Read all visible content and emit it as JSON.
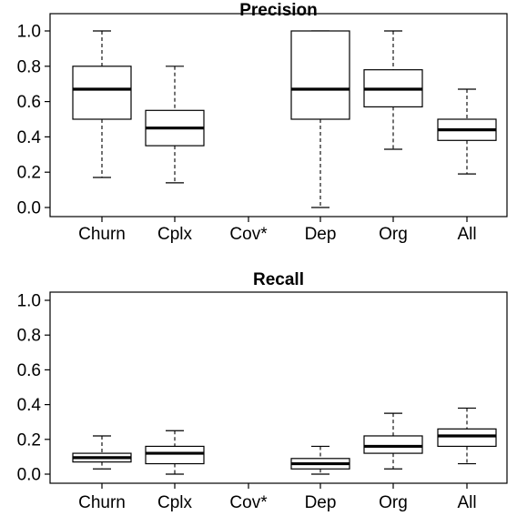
{
  "chart_data": [
    {
      "type": "box",
      "title": "Precision",
      "categories": [
        "Churn",
        "Cplx",
        "Cov*",
        "Dep",
        "Org",
        "All"
      ],
      "ylim": [
        0,
        1
      ],
      "yticks": [
        "0.0",
        "0.2",
        "0.4",
        "0.6",
        "0.8",
        "1.0"
      ],
      "boxes": [
        {
          "category": "Churn",
          "min": 0.17,
          "q1": 0.5,
          "median": 0.67,
          "q3": 0.8,
          "max": 1.0
        },
        {
          "category": "Cplx",
          "min": 0.14,
          "q1": 0.35,
          "median": 0.45,
          "q3": 0.55,
          "max": 0.8
        },
        {
          "category": "Cov*",
          "min": null,
          "q1": null,
          "median": null,
          "q3": null,
          "max": null
        },
        {
          "category": "Dep",
          "min": 0.0,
          "q1": 0.5,
          "median": 0.67,
          "q3": 1.0,
          "max": 1.0
        },
        {
          "category": "Org",
          "min": 0.33,
          "q1": 0.57,
          "median": 0.67,
          "q3": 0.78,
          "max": 1.0
        },
        {
          "category": "All",
          "min": 0.19,
          "q1": 0.38,
          "median": 0.44,
          "q3": 0.5,
          "max": 0.67
        }
      ]
    },
    {
      "type": "box",
      "title": "Recall",
      "categories": [
        "Churn",
        "Cplx",
        "Cov*",
        "Dep",
        "Org",
        "All"
      ],
      "ylim": [
        0,
        1
      ],
      "yticks": [
        "0.0",
        "0.2",
        "0.4",
        "0.6",
        "0.8",
        "1.0"
      ],
      "boxes": [
        {
          "category": "Churn",
          "min": 0.03,
          "q1": 0.07,
          "median": 0.095,
          "q3": 0.12,
          "max": 0.22
        },
        {
          "category": "Cplx",
          "min": 0.0,
          "q1": 0.06,
          "median": 0.12,
          "q3": 0.16,
          "max": 0.25
        },
        {
          "category": "Cov*",
          "min": null,
          "q1": null,
          "median": null,
          "q3": null,
          "max": null
        },
        {
          "category": "Dep",
          "min": 0.0,
          "q1": 0.03,
          "median": 0.06,
          "q3": 0.09,
          "max": 0.16
        },
        {
          "category": "Org",
          "min": 0.03,
          "q1": 0.12,
          "median": 0.16,
          "q3": 0.22,
          "max": 0.35
        },
        {
          "category": "All",
          "min": 0.06,
          "q1": 0.16,
          "median": 0.22,
          "q3": 0.26,
          "max": 0.38
        }
      ]
    }
  ]
}
